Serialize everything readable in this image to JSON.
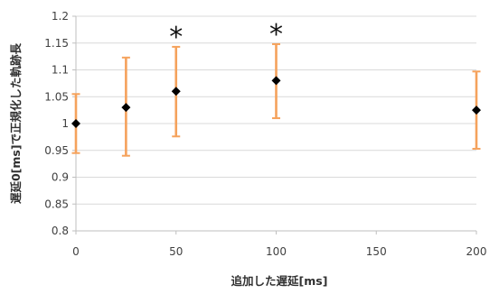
{
  "chart_data": {
    "type": "scatter",
    "xlabel": "追加した遅延[ms]",
    "ylabel": "遅延0[ms]で正規化した軌跡長",
    "xlim": [
      0,
      200
    ],
    "ylim": [
      0.8,
      1.2
    ],
    "x_ticks": [
      0,
      50,
      100,
      150,
      200
    ],
    "y_ticks": [
      0.8,
      0.85,
      0.9,
      0.95,
      1.0,
      1.05,
      1.1,
      1.15,
      1.2
    ],
    "x_tick_labels": [
      "0",
      "50",
      "100",
      "150",
      "200"
    ],
    "y_tick_labels": [
      "0.8",
      "0.85",
      "0.9",
      "0.95",
      "1",
      "1.05",
      "1.1",
      "1.15",
      "1.2"
    ],
    "grid": true,
    "points": [
      {
        "x": 0,
        "y": 1.0,
        "err_low": 0.945,
        "err_high": 1.055
      },
      {
        "x": 25,
        "y": 1.03,
        "err_low": 0.94,
        "err_high": 1.123
      },
      {
        "x": 50,
        "y": 1.06,
        "err_low": 0.976,
        "err_high": 1.143
      },
      {
        "x": 100,
        "y": 1.08,
        "err_low": 1.01,
        "err_high": 1.148
      },
      {
        "x": 200,
        "y": 1.025,
        "err_low": 0.953,
        "err_high": 1.097
      }
    ],
    "annotations": [
      {
        "text": "*",
        "x": 50
      },
      {
        "text": "*",
        "x": 100
      }
    ],
    "colors": {
      "marker": "#000000",
      "error_bar": "#f5a25c",
      "grid": "#d9d9d9",
      "axis": "#bfbfbf"
    }
  }
}
